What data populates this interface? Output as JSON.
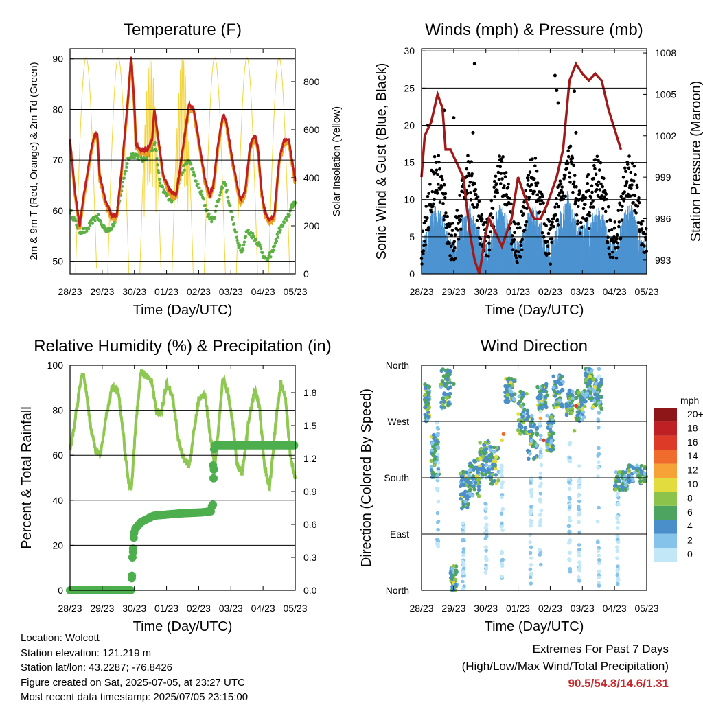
{
  "colors": {
    "t2m": "#e8a125",
    "t9m": "#c0201f",
    "td": "#5cb044",
    "solar": "#f3d541",
    "wind": "#4c93d0",
    "gust": "#000000",
    "pressure": "#a11a1a",
    "rh": "#8ec850",
    "precip": "#4cae4c",
    "extremes": "#c8282a"
  },
  "speed_colors": [
    "#c2e7f7",
    "#86c3ea",
    "#4b8fca",
    "#4da460",
    "#8cc34b",
    "#e3dc3e",
    "#f6a236",
    "#ef6c2c",
    "#de3a28",
    "#be2024",
    "#8e1518"
  ],
  "chart_data": [
    {
      "id": "temp",
      "type": "line",
      "title": "Temperature (F)",
      "xlabel": "Time (Day/UTC)",
      "ylabel": "2m & 9m T (Red, Orange) & 2m Td (Green)",
      "ylabel_right": "Solar Insolation (Yellow)",
      "x_ticks": [
        "28/23",
        "29/23",
        "30/23",
        "01/23",
        "02/23",
        "03/23",
        "04/23",
        "05/23"
      ],
      "xlim": [
        0,
        7
      ],
      "ylim": [
        47.5,
        92
      ],
      "yticks": [
        50,
        60,
        70,
        80,
        90
      ],
      "ylim_right": [
        0,
        937
      ],
      "yticks_right": [
        0,
        200,
        400,
        600,
        800
      ],
      "gridlines": [
        50,
        60,
        70,
        80,
        90
      ],
      "series": [
        {
          "kind": "t",
          "points": [
            [
              0,
              74
            ],
            [
              0.15,
              64
            ],
            [
              0.3,
              57
            ],
            [
              0.45,
              64
            ],
            [
              0.6,
              70
            ],
            [
              0.75,
              75
            ],
            [
              0.85,
              75
            ],
            [
              0.92,
              67
            ],
            [
              1.1,
              62
            ],
            [
              1.3,
              59
            ],
            [
              1.45,
              59
            ],
            [
              1.6,
              68
            ],
            [
              1.8,
              82
            ],
            [
              1.9,
              90.5
            ],
            [
              2.0,
              81
            ],
            [
              2.05,
              73
            ],
            [
              2.2,
              72
            ],
            [
              2.4,
              72
            ],
            [
              2.55,
              74
            ],
            [
              2.62,
              80
            ],
            [
              2.75,
              74
            ],
            [
              2.9,
              67
            ],
            [
              3.1,
              64
            ],
            [
              3.3,
              63
            ],
            [
              3.5,
              72
            ],
            [
              3.7,
              81
            ],
            [
              3.85,
              80
            ],
            [
              4.05,
              72
            ],
            [
              4.2,
              66
            ],
            [
              4.35,
              63
            ],
            [
              4.45,
              65
            ],
            [
              4.6,
              73
            ],
            [
              4.75,
              79
            ],
            [
              4.85,
              78
            ],
            [
              5.05,
              70
            ],
            [
              5.2,
              65
            ],
            [
              5.3,
              62
            ],
            [
              5.45,
              64
            ],
            [
              5.6,
              73
            ],
            [
              5.75,
              75
            ],
            [
              5.85,
              72
            ],
            [
              5.95,
              64
            ],
            [
              6.05,
              60
            ],
            [
              6.2,
              58
            ],
            [
              6.35,
              59
            ],
            [
              6.5,
              70
            ],
            [
              6.65,
              74
            ],
            [
              6.8,
              74
            ],
            [
              6.9,
              70
            ],
            [
              7.0,
              66
            ]
          ]
        },
        {
          "kind": "td",
          "points": [
            [
              0,
              60
            ],
            [
              0.15,
              58
            ],
            [
              0.3,
              56
            ],
            [
              0.5,
              56
            ],
            [
              0.7,
              58
            ],
            [
              0.85,
              59
            ],
            [
              1.0,
              57
            ],
            [
              1.2,
              56
            ],
            [
              1.4,
              58
            ],
            [
              1.6,
              64
            ],
            [
              1.8,
              70
            ],
            [
              1.9,
              71
            ],
            [
              2.05,
              71
            ],
            [
              2.3,
              70
            ],
            [
              2.5,
              72
            ],
            [
              2.65,
              73
            ],
            [
              2.8,
              65
            ],
            [
              3.0,
              63
            ],
            [
              3.2,
              62
            ],
            [
              3.5,
              68
            ],
            [
              3.7,
              70
            ],
            [
              3.9,
              66
            ],
            [
              4.1,
              63
            ],
            [
              4.3,
              59
            ],
            [
              4.45,
              58
            ],
            [
              4.6,
              62
            ],
            [
              4.8,
              66
            ],
            [
              5.0,
              60
            ],
            [
              5.2,
              54
            ],
            [
              5.35,
              52
            ],
            [
              5.5,
              56
            ],
            [
              5.7,
              55
            ],
            [
              5.9,
              53
            ],
            [
              6.1,
              50
            ],
            [
              6.3,
              52
            ],
            [
              6.5,
              56
            ],
            [
              6.7,
              58
            ],
            [
              6.85,
              60
            ],
            [
              7.0,
              62
            ]
          ]
        },
        {
          "kind": "solar",
          "peaks": [
            0.5,
            1.5,
            2.5,
            3.5,
            4.5,
            5.5,
            6.5
          ]
        }
      ]
    },
    {
      "id": "wind",
      "type": "scatter",
      "title": "Winds (mph) & Pressure (mb)",
      "xlabel": "Time (Day/UTC)",
      "ylabel": "Sonic Wind & Gust (Blue, Black)",
      "ylabel_right": "Station Pressure (Maroon)",
      "x_ticks": [
        "28/23",
        "29/23",
        "30/23",
        "01/23",
        "02/23",
        "03/23",
        "04/23",
        "05/23"
      ],
      "xlim": [
        0,
        7
      ],
      "ylim": [
        0,
        30.3
      ],
      "yticks": [
        0,
        5,
        10,
        15,
        20,
        25,
        30
      ],
      "ylim_right": [
        992,
        1008.3
      ],
      "yticks_right": [
        993,
        996,
        999,
        1002,
        1005,
        1008
      ],
      "gridlines": [
        5,
        10,
        15,
        20,
        25,
        30
      ],
      "pressure": [
        [
          0,
          999
        ],
        [
          0.1,
          1002
        ],
        [
          0.3,
          1003
        ],
        [
          0.5,
          1005
        ],
        [
          0.65,
          1004
        ],
        [
          0.75,
          1001
        ],
        [
          0.9,
          1001
        ],
        [
          1.1,
          1000
        ],
        [
          1.3,
          999
        ],
        [
          1.5,
          995
        ],
        [
          1.65,
          993
        ],
        [
          1.8,
          992
        ],
        [
          2.0,
          995
        ],
        [
          2.1,
          996
        ],
        [
          2.3,
          995
        ],
        [
          2.5,
          994
        ],
        [
          2.65,
          995
        ],
        [
          2.8,
          996
        ],
        [
          3.0,
          999
        ],
        [
          3.15,
          998
        ],
        [
          3.3,
          997
        ],
        [
          3.5,
          996
        ],
        [
          3.7,
          996
        ],
        [
          3.9,
          997
        ],
        [
          4.2,
          999
        ],
        [
          4.4,
          1001
        ],
        [
          4.6,
          1006
        ],
        [
          4.8,
          1007.2
        ],
        [
          5.0,
          1006.5
        ],
        [
          5.2,
          1006
        ],
        [
          5.4,
          1006.5
        ],
        [
          5.6,
          1006
        ],
        [
          5.8,
          1004
        ],
        [
          6.0,
          1002.5
        ],
        [
          6.2,
          1001
        ]
      ]
    },
    {
      "id": "rh",
      "type": "line",
      "title": "Relative Humidity (%) & Precipitation (in)",
      "xlabel": "Time (Day/UTC)",
      "ylabel": "Percent & Total Rainfall",
      "x_ticks": [
        "28/23",
        "29/23",
        "30/23",
        "01/23",
        "02/23",
        "03/23",
        "04/23",
        "05/23"
      ],
      "xlim": [
        0,
        7
      ],
      "ylim": [
        0,
        100
      ],
      "yticks": [
        0,
        20,
        40,
        60,
        80,
        100
      ],
      "ylim_right": [
        0,
        2.05
      ],
      "yticks_right": [
        "0.0",
        "0.3",
        "0.6",
        "0.9",
        "1.2",
        "1.5",
        "1.8"
      ],
      "gridlines": [
        20,
        40,
        60,
        80,
        100
      ],
      "rh": [
        [
          0,
          62
        ],
        [
          0.15,
          75
        ],
        [
          0.3,
          90
        ],
        [
          0.4,
          97
        ],
        [
          0.5,
          88
        ],
        [
          0.65,
          72
        ],
        [
          0.8,
          62
        ],
        [
          0.95,
          60
        ],
        [
          1.1,
          75
        ],
        [
          1.3,
          90
        ],
        [
          1.5,
          88
        ],
        [
          1.65,
          70
        ],
        [
          1.8,
          50
        ],
        [
          1.9,
          43
        ],
        [
          2.05,
          75
        ],
        [
          2.2,
          97
        ],
        [
          2.4,
          95
        ],
        [
          2.55,
          92
        ],
        [
          2.7,
          78
        ],
        [
          2.85,
          80
        ],
        [
          3.0,
          92
        ],
        [
          3.2,
          86
        ],
        [
          3.35,
          68
        ],
        [
          3.5,
          60
        ],
        [
          3.7,
          55
        ],
        [
          3.85,
          70
        ],
        [
          4.0,
          85
        ],
        [
          4.2,
          87
        ],
        [
          4.35,
          70
        ],
        [
          4.5,
          55
        ],
        [
          4.6,
          70
        ],
        [
          4.75,
          94
        ],
        [
          4.9,
          88
        ],
        [
          5.05,
          75
        ],
        [
          5.2,
          55
        ],
        [
          5.35,
          52
        ],
        [
          5.55,
          75
        ],
        [
          5.75,
          90
        ],
        [
          5.9,
          80
        ],
        [
          6.05,
          55
        ],
        [
          6.2,
          45
        ],
        [
          6.4,
          75
        ],
        [
          6.55,
          92
        ],
        [
          6.7,
          85
        ],
        [
          6.85,
          60
        ],
        [
          7.0,
          50
        ]
      ],
      "precip": [
        [
          0,
          0
        ],
        [
          1.9,
          0
        ],
        [
          1.92,
          0.1
        ],
        [
          1.95,
          0.3
        ],
        [
          2.0,
          0.55
        ],
        [
          2.2,
          0.62
        ],
        [
          2.6,
          0.68
        ],
        [
          3.0,
          0.69
        ],
        [
          3.4,
          0.7
        ],
        [
          4.1,
          0.71
        ],
        [
          4.38,
          0.72
        ],
        [
          4.42,
          0.78
        ],
        [
          4.44,
          1.1
        ],
        [
          4.46,
          1.25
        ],
        [
          4.5,
          1.32
        ],
        [
          7.0,
          1.32
        ]
      ]
    },
    {
      "id": "dir",
      "type": "scatter",
      "title": "Wind Direction",
      "xlabel": "Time (Day/UTC)",
      "ylabel": "Direction (Colored By Speed)",
      "x_ticks": [
        "28/23",
        "29/23",
        "30/23",
        "01/23",
        "02/23",
        "03/23",
        "04/23",
        "05/23"
      ],
      "xlim": [
        0,
        7
      ],
      "ylim": [
        0,
        360
      ],
      "ytick_labels": [
        "North",
        "East",
        "South",
        "West",
        "North"
      ],
      "gridlines": [
        90,
        180,
        270,
        360
      ],
      "legend_title": "mph",
      "legend_labels": [
        "0",
        "2",
        "4",
        "6",
        "8",
        "10",
        "12",
        "14",
        "16",
        "18",
        "20+"
      ],
      "clusters": [
        [
          0.1,
          0.25,
          270,
          330
        ],
        [
          0.3,
          0.55,
          180,
          250
        ],
        [
          0.6,
          0.9,
          290,
          355
        ],
        [
          0.9,
          1.1,
          0,
          40
        ],
        [
          1.2,
          1.5,
          130,
          190
        ],
        [
          1.5,
          1.8,
          150,
          210
        ],
        [
          1.8,
          2.1,
          180,
          240
        ],
        [
          2.1,
          2.4,
          170,
          230
        ],
        [
          2.6,
          2.9,
          300,
          340
        ],
        [
          3.0,
          3.3,
          250,
          320
        ],
        [
          3.3,
          3.6,
          210,
          280
        ],
        [
          3.6,
          3.9,
          290,
          330
        ],
        [
          3.9,
          4.1,
          220,
          280
        ],
        [
          4.1,
          4.4,
          290,
          345
        ],
        [
          4.5,
          4.7,
          280,
          320
        ],
        [
          4.8,
          5.1,
          270,
          320
        ],
        [
          5.1,
          5.3,
          300,
          355
        ],
        [
          5.3,
          5.6,
          290,
          340
        ],
        [
          6.0,
          6.4,
          160,
          190
        ],
        [
          6.4,
          7.0,
          170,
          200
        ]
      ],
      "streaks": [
        [
          0.5,
          60,
          270
        ],
        [
          1.3,
          0,
          120
        ],
        [
          2.0,
          20,
          140
        ],
        [
          2.5,
          10,
          200
        ],
        [
          3.4,
          0,
          180
        ],
        [
          3.7,
          40,
          300
        ],
        [
          4.6,
          20,
          250
        ],
        [
          4.9,
          10,
          200
        ],
        [
          5.5,
          0,
          360
        ],
        [
          6.1,
          10,
          190
        ]
      ]
    }
  ],
  "footer": {
    "location": "Location: Wolcott",
    "elevation": "Station elevation: 121.219 m",
    "latlon": "Station lat/lon: 43.2287; -76.8426",
    "created": "Figure created on Sat, 2025-07-05, at 23:27 UTC",
    "recent": "Most recent data timestamp: 2025/07/05 23:15:00"
  },
  "extremes": {
    "title": "Extremes For Past 7 Days",
    "subtitle": "(High/Low/Max Wind/Total Precipitation)",
    "values": "90.5/54.8/14.6/1.31"
  }
}
